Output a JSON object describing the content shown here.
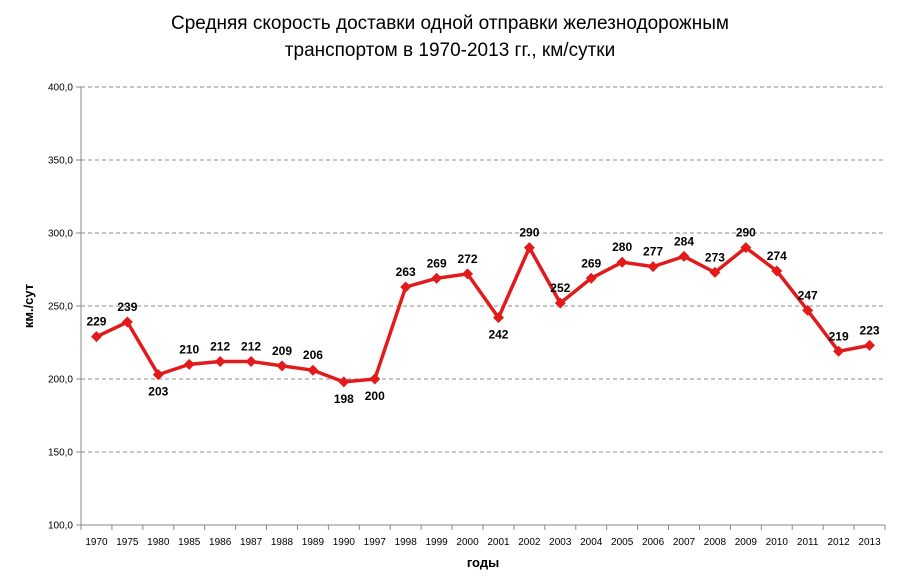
{
  "chart_data": {
    "type": "line",
    "title": "Средняя скорость доставки одной отправки железнодорожным",
    "subtitle": "транспортом в 1970-2013 гг., км/сутки",
    "xlabel": "годы",
    "ylabel": "км./сут",
    "ylim": [
      100,
      400
    ],
    "yticks": [
      "100,0",
      "150,0",
      "200,0",
      "250,0",
      "300,0",
      "350,0",
      "400,0"
    ],
    "grid": true,
    "legend": "none",
    "categories": [
      "1970",
      "1975",
      "1980",
      "1985",
      "1986",
      "1987",
      "1988",
      "1989",
      "1990",
      "1997",
      "1998",
      "1999",
      "2000",
      "2001",
      "2002",
      "2003",
      "2004",
      "2005",
      "2006",
      "2007",
      "2008",
      "2009",
      "2010",
      "2011",
      "2012",
      "2013"
    ],
    "series": [
      {
        "color": "#e31a1c",
        "values": [
          229,
          239,
          203,
          210,
          212,
          212,
          209,
          206,
          198,
          200,
          263,
          269,
          272,
          242,
          290,
          252,
          269,
          280,
          277,
          284,
          273,
          290,
          274,
          247,
          219,
          223
        ],
        "labels": [
          "229",
          "239",
          "203",
          "210",
          "212",
          "212",
          "209",
          "206",
          "198",
          "200",
          "263",
          "269",
          "272",
          "242",
          "290",
          "252",
          "269",
          "280",
          "277",
          "284",
          "273",
          "290",
          "274",
          "247",
          "219",
          "223"
        ],
        "label_positions": [
          "above",
          "above",
          "below",
          "above",
          "above",
          "above",
          "above",
          "above",
          "below",
          "below",
          "above",
          "above",
          "above",
          "below",
          "above",
          "above",
          "above",
          "above",
          "above",
          "above",
          "above",
          "above",
          "above",
          "above",
          "above",
          "above"
        ]
      }
    ]
  }
}
